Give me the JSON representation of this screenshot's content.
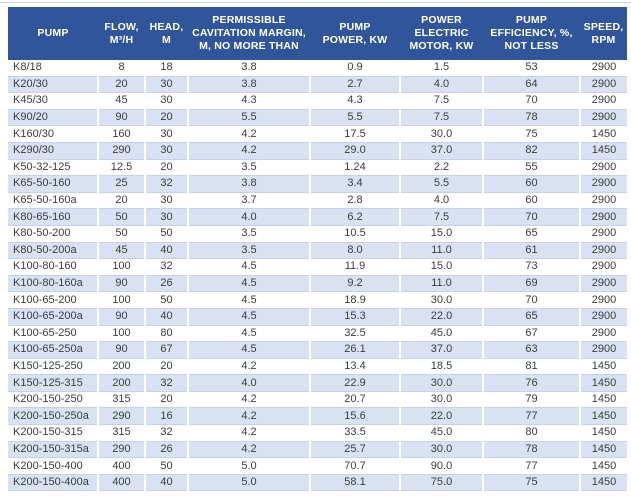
{
  "colors": {
    "header_bg": "#31559B",
    "header_text": "#FFFFFF",
    "band_bg": "#D9E2F3",
    "grid_line": "#C7D2EA",
    "text": "#3C3C3C"
  },
  "table": {
    "columns": [
      {
        "key": "pump",
        "label": "PUMP"
      },
      {
        "key": "flow",
        "label": "FLOW,\nM³/H"
      },
      {
        "key": "head",
        "label": "HEAD,\nM"
      },
      {
        "key": "cavitation",
        "label": "PERMISSIBLE\nCAVITATION MARGIN,\nM, NO MORE THAN"
      },
      {
        "key": "pump_power",
        "label": "PUMP\nPOWER, KW"
      },
      {
        "key": "motor_power",
        "label": "POWER\nELECTRIC\nMOTOR, KW"
      },
      {
        "key": "efficiency",
        "label": "PUMP\nEFFICIENCY, %,\nNOT LESS"
      },
      {
        "key": "speed",
        "label": "SPEED,\nRPM"
      }
    ],
    "rows": [
      {
        "pump": "K8/18",
        "flow": "8",
        "head": "18",
        "cavitation": "3.8",
        "pump_power": "0.9",
        "motor_power": "1.5",
        "efficiency": "53",
        "speed": "2900"
      },
      {
        "pump": "K20/30",
        "flow": "20",
        "head": "30",
        "cavitation": "3.8",
        "pump_power": "2.7",
        "motor_power": "4.0",
        "efficiency": "64",
        "speed": "2900"
      },
      {
        "pump": "K45/30",
        "flow": "45",
        "head": "30",
        "cavitation": "4.3",
        "pump_power": "4.3",
        "motor_power": "7.5",
        "efficiency": "70",
        "speed": "2900"
      },
      {
        "pump": "K90/20",
        "flow": "90",
        "head": "20",
        "cavitation": "5.5",
        "pump_power": "5.5",
        "motor_power": "7.5",
        "efficiency": "78",
        "speed": "2900"
      },
      {
        "pump": "K160/30",
        "flow": "160",
        "head": "30",
        "cavitation": "4.2",
        "pump_power": "17.5",
        "motor_power": "30.0",
        "efficiency": "75",
        "speed": "1450"
      },
      {
        "pump": "K290/30",
        "flow": "290",
        "head": "30",
        "cavitation": "4.2",
        "pump_power": "29.0",
        "motor_power": "37.0",
        "efficiency": "82",
        "speed": "1450"
      },
      {
        "pump": "K50-32-125",
        "flow": "12.5",
        "head": "20",
        "cavitation": "3.5",
        "pump_power": "1.24",
        "motor_power": "2.2",
        "efficiency": "55",
        "speed": "2900"
      },
      {
        "pump": "K65-50-160",
        "flow": "25",
        "head": "32",
        "cavitation": "3.8",
        "pump_power": "3.4",
        "motor_power": "5.5",
        "efficiency": "60",
        "speed": "2900"
      },
      {
        "pump": "K65-50-160a",
        "flow": "20",
        "head": "30",
        "cavitation": "3.7",
        "pump_power": "2.8",
        "motor_power": "4.0",
        "efficiency": "60",
        "speed": "2900"
      },
      {
        "pump": "K80-65-160",
        "flow": "50",
        "head": "30",
        "cavitation": "4.0",
        "pump_power": "6.2",
        "motor_power": "7.5",
        "efficiency": "70",
        "speed": "2900"
      },
      {
        "pump": "K80-50-200",
        "flow": "50",
        "head": "50",
        "cavitation": "3.5",
        "pump_power": "10.5",
        "motor_power": "15.0",
        "efficiency": "65",
        "speed": "2900"
      },
      {
        "pump": "K80-50-200a",
        "flow": "45",
        "head": "40",
        "cavitation": "3.5",
        "pump_power": "8.0",
        "motor_power": "11.0",
        "efficiency": "61",
        "speed": "2900"
      },
      {
        "pump": "K100-80-160",
        "flow": "100",
        "head": "32",
        "cavitation": "4.5",
        "pump_power": "11.9",
        "motor_power": "15.0",
        "efficiency": "73",
        "speed": "2900"
      },
      {
        "pump": "K100-80-160a",
        "flow": "90",
        "head": "26",
        "cavitation": "4.5",
        "pump_power": "9.2",
        "motor_power": "11.0",
        "efficiency": "69",
        "speed": "2900"
      },
      {
        "pump": "K100-65-200",
        "flow": "100",
        "head": "50",
        "cavitation": "4.5",
        "pump_power": "18.9",
        "motor_power": "30.0",
        "efficiency": "70",
        "speed": "2900"
      },
      {
        "pump": "K100-65-200a",
        "flow": "90",
        "head": "40",
        "cavitation": "4.5",
        "pump_power": "15.3",
        "motor_power": "22.0",
        "efficiency": "65",
        "speed": "2900"
      },
      {
        "pump": "K100-65-250",
        "flow": "100",
        "head": "80",
        "cavitation": "4.5",
        "pump_power": "32.5",
        "motor_power": "45.0",
        "efficiency": "67",
        "speed": "2900"
      },
      {
        "pump": "K100-65-250a",
        "flow": "90",
        "head": "67",
        "cavitation": "4.5",
        "pump_power": "26.1",
        "motor_power": "37.0",
        "efficiency": "63",
        "speed": "2900"
      },
      {
        "pump": "K150-125-250",
        "flow": "200",
        "head": "20",
        "cavitation": "4.2",
        "pump_power": "13.4",
        "motor_power": "18.5",
        "efficiency": "81",
        "speed": "1450"
      },
      {
        "pump": "K150-125-315",
        "flow": "200",
        "head": "32",
        "cavitation": "4.0",
        "pump_power": "22.9",
        "motor_power": "30.0",
        "efficiency": "76",
        "speed": "1450"
      },
      {
        "pump": "K200-150-250",
        "flow": "315",
        "head": "20",
        "cavitation": "4.2",
        "pump_power": "20.7",
        "motor_power": "30.0",
        "efficiency": "79",
        "speed": "1450"
      },
      {
        "pump": "K200-150-250a",
        "flow": "290",
        "head": "16",
        "cavitation": "4.2",
        "pump_power": "15.6",
        "motor_power": "22.0",
        "efficiency": "77",
        "speed": "1450"
      },
      {
        "pump": "K200-150-315",
        "flow": "315",
        "head": "32",
        "cavitation": "4.2",
        "pump_power": "33.5",
        "motor_power": "45.0",
        "efficiency": "80",
        "speed": "1450"
      },
      {
        "pump": "K200-150-315a",
        "flow": "290",
        "head": "26",
        "cavitation": "4.2",
        "pump_power": "25.7",
        "motor_power": "30.0",
        "efficiency": "78",
        "speed": "1450"
      },
      {
        "pump": "K200-150-400",
        "flow": "400",
        "head": "50",
        "cavitation": "5.0",
        "pump_power": "70.7",
        "motor_power": "90.0",
        "efficiency": "77",
        "speed": "1450"
      },
      {
        "pump": "K200-150-400a",
        "flow": "400",
        "head": "40",
        "cavitation": "5.0",
        "pump_power": "58.1",
        "motor_power": "75.0",
        "efficiency": "75",
        "speed": "1450"
      }
    ]
  }
}
